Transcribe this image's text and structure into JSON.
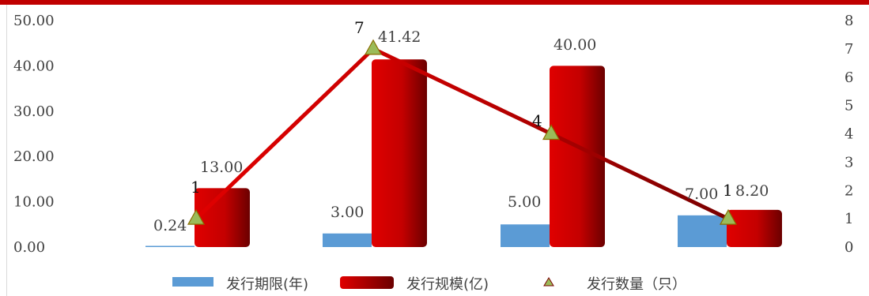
{
  "chart_data": {
    "type": "bar",
    "categories": [
      "",
      "",
      "",
      ""
    ],
    "left_axis": {
      "ylim": [
        0,
        50
      ],
      "ticks": [
        "0.00",
        "10.00",
        "20.00",
        "30.00",
        "40.00",
        "50.00"
      ]
    },
    "right_axis": {
      "ylim": [
        0,
        8
      ],
      "ticks": [
        "0",
        "1",
        "2",
        "3",
        "4",
        "5",
        "6",
        "7",
        "8"
      ]
    },
    "series": [
      {
        "name": "发行期限(年)",
        "kind": "bar",
        "axis": "left",
        "values": [
          0.24,
          3.0,
          5.0,
          7.0
        ],
        "labels": [
          "0.24",
          "3.00",
          "5.00",
          "7.00"
        ],
        "color": "#5b9bd5"
      },
      {
        "name": "发行规模(亿)",
        "kind": "bar",
        "axis": "left",
        "values": [
          13.0,
          41.42,
          40.0,
          8.2
        ],
        "labels": [
          "13.00",
          "41.42",
          "40.00",
          "8.20"
        ],
        "color": "#e00000",
        "color_dark": "#6b0000"
      },
      {
        "name": "发行数量（只）",
        "kind": "line",
        "axis": "right",
        "values": [
          1,
          7,
          4,
          1
        ],
        "labels": [
          "1",
          "7",
          "4",
          "1"
        ],
        "color": "#c00000",
        "color_dark": "#7a0000",
        "marker": "triangle",
        "marker_fill": "#9bbb59"
      }
    ],
    "grid": false,
    "legend_position": "bottom"
  }
}
